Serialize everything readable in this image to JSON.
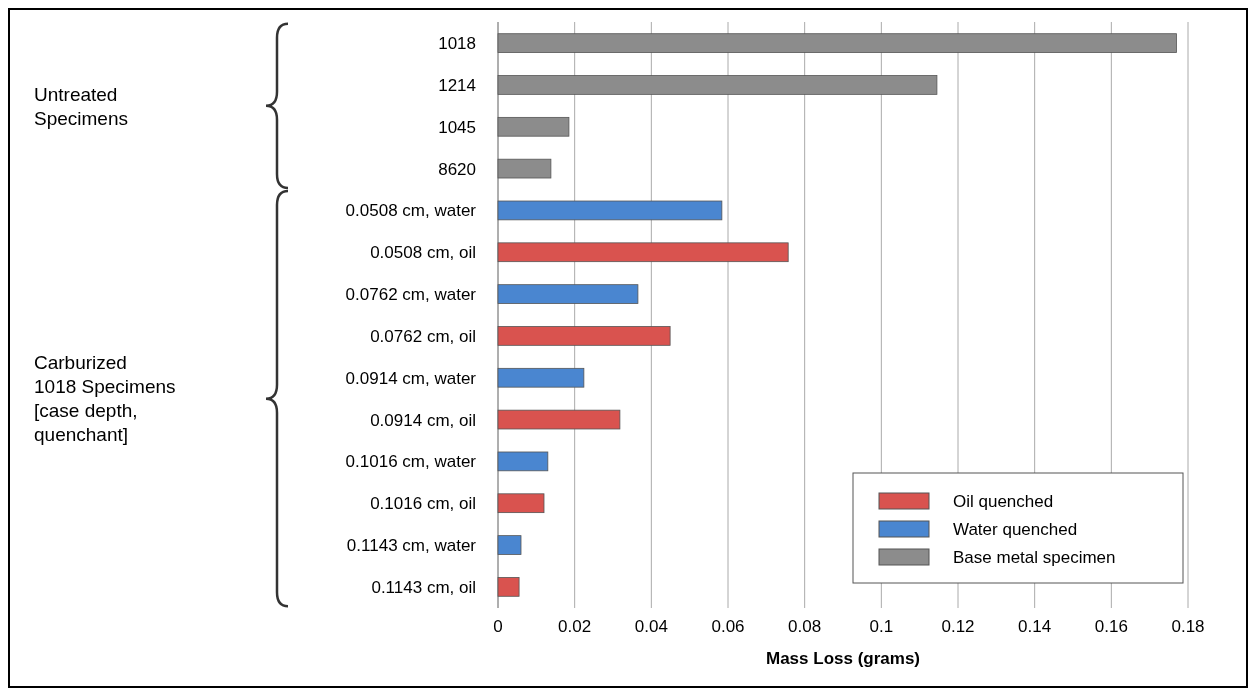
{
  "chart_data": {
    "type": "bar",
    "orientation": "horizontal",
    "stacked": true,
    "categories": [
      "1018",
      "1214",
      "1045",
      "8620",
      "0.0508 cm, water",
      "0.0508 cm, oil",
      "0.0762 cm, water",
      "0.0762 cm, oil",
      "0.0914 cm, water",
      "0.0914 cm, oil",
      "0.1016 cm, water",
      "0.1016 cm, oil",
      "0.1143 cm, water",
      "0.1143 cm, oil"
    ],
    "series": [
      {
        "name": "Oil quenched",
        "color": "#d9534f",
        "values": [
          null,
          null,
          null,
          null,
          null,
          0.0757,
          null,
          0.0449,
          null,
          0.0318,
          null,
          0.012,
          null,
          0.0055
        ]
      },
      {
        "name": "Water quenched",
        "color": "#4a86d0",
        "values": [
          null,
          null,
          null,
          null,
          0.0584,
          null,
          0.0365,
          null,
          0.0224,
          null,
          0.013,
          null,
          0.006,
          null
        ]
      },
      {
        "name": "Base metal specimen",
        "color": "#8c8c8c",
        "values": [
          0.177,
          0.1145,
          0.0185,
          0.0138,
          null,
          null,
          null,
          null,
          null,
          null,
          null,
          null,
          null,
          null
        ]
      }
    ],
    "xlim": [
      0,
      0.18
    ],
    "xticks": [
      0,
      0.02,
      0.04,
      0.06,
      0.08,
      0.1,
      0.12,
      0.14,
      0.16,
      0.18
    ],
    "xlabel": "Mass Loss (grams)",
    "grid": "x",
    "legend": "bottom right",
    "annotations": [
      "Untreated Specimens",
      "Carburized 1018 Specimens [case depth, quenchant]"
    ]
  }
}
